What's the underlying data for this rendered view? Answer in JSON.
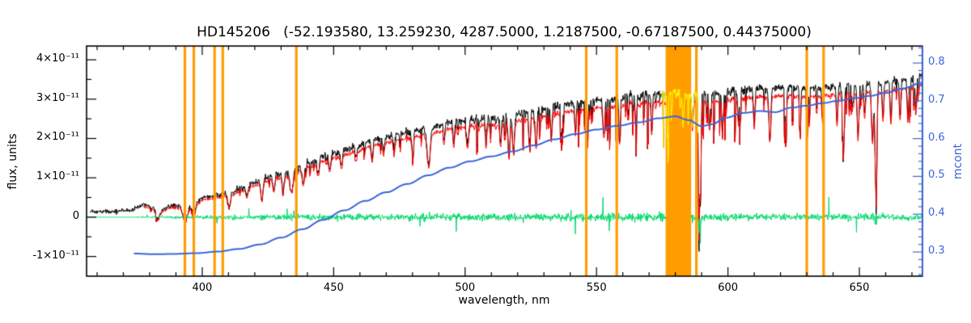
{
  "chart_data": {
    "type": "line",
    "title": "HD145206   (-52.193580, 13.259230, 4287.5000, 1.2187500, -0.67187500, 0.44375000)",
    "xlabel": "wavelength, nm",
    "x_range": [
      356,
      674
    ],
    "x_ticks": [
      400,
      450,
      500,
      550,
      600,
      650
    ],
    "x_tick_labels": [
      "400",
      "450",
      "500",
      "550",
      "600",
      "650"
    ],
    "x_minor_step": 10,
    "left_axis": {
      "label": "flux, units",
      "units_scale": "1e-11",
      "range_1e11": [
        -1.5,
        4.35
      ],
      "ticks_1e11": [
        -1,
        0,
        1,
        2,
        3,
        4
      ],
      "tick_labels": [
        "-1×10⁻¹¹",
        "0",
        "1×10⁻¹¹",
        "2×10⁻¹¹",
        "3×10⁻¹¹",
        "4×10⁻¹¹"
      ],
      "color": "#000000"
    },
    "right_axis": {
      "label": "mcont",
      "range": [
        0.236,
        0.845
      ],
      "ticks": [
        0.3,
        0.4,
        0.5,
        0.6,
        0.7,
        0.8
      ],
      "tick_labels": [
        "0.3",
        "0.4",
        "0.5",
        "0.6",
        "0.7",
        "0.8"
      ],
      "color": "#3a66d9"
    },
    "series": [
      {
        "name": "observed-spectrum",
        "color": "#000000",
        "axis": "left",
        "start_nm": 357.4,
        "envelope_1e11": [
          [
            357,
            0.14
          ],
          [
            365,
            0.15
          ],
          [
            373,
            0.18
          ],
          [
            377,
            0.3
          ],
          [
            381,
            0.26
          ],
          [
            384,
            0.14
          ],
          [
            388,
            0.3
          ],
          [
            391,
            0.28
          ],
          [
            394,
            0.22
          ],
          [
            397,
            0.3
          ],
          [
            400,
            0.5
          ],
          [
            404,
            0.55
          ],
          [
            408,
            0.6
          ],
          [
            412,
            0.66
          ],
          [
            417,
            0.8
          ],
          [
            422,
            0.95
          ],
          [
            427,
            1.05
          ],
          [
            432,
            1.12
          ],
          [
            437,
            1.28
          ],
          [
            442,
            1.42
          ],
          [
            447,
            1.55
          ],
          [
            452,
            1.66
          ],
          [
            458,
            1.8
          ],
          [
            464,
            1.95
          ],
          [
            471,
            2.06
          ],
          [
            478,
            2.16
          ],
          [
            483,
            2.22
          ],
          [
            488,
            2.32
          ],
          [
            494,
            2.42
          ],
          [
            500,
            2.48
          ],
          [
            508,
            2.52
          ],
          [
            513,
            2.48
          ],
          [
            518,
            2.58
          ],
          [
            524,
            2.68
          ],
          [
            532,
            2.78
          ],
          [
            540,
            2.88
          ],
          [
            548,
            2.96
          ],
          [
            556,
            3.02
          ],
          [
            564,
            3.08
          ],
          [
            572,
            3.12
          ],
          [
            580,
            3.16
          ],
          [
            588,
            3.12
          ],
          [
            596,
            3.16
          ],
          [
            604,
            3.22
          ],
          [
            612,
            3.26
          ],
          [
            620,
            3.3
          ],
          [
            628,
            3.26
          ],
          [
            636,
            3.3
          ],
          [
            644,
            3.36
          ],
          [
            652,
            3.4
          ],
          [
            660,
            3.44
          ],
          [
            668,
            3.5
          ],
          [
            674,
            3.58
          ]
        ],
        "noise_amp_1e11": [
          [
            357,
            0.06
          ],
          [
            375,
            0.07
          ],
          [
            400,
            0.09
          ],
          [
            430,
            0.11
          ],
          [
            470,
            0.12
          ],
          [
            520,
            0.13
          ],
          [
            560,
            0.13
          ],
          [
            600,
            0.13
          ],
          [
            640,
            0.12
          ],
          [
            674,
            0.12
          ]
        ],
        "spike_prob": [
          [
            357,
            0.02
          ],
          [
            430,
            0.03
          ],
          [
            470,
            0.07
          ],
          [
            520,
            0.1
          ],
          [
            545,
            0.13
          ],
          [
            600,
            0.13
          ],
          [
            640,
            0.11
          ],
          [
            674,
            0.1
          ]
        ],
        "spike_depth_1e11": [
          [
            357,
            0.15
          ],
          [
            430,
            0.3
          ],
          [
            470,
            0.7
          ],
          [
            520,
            1.0
          ],
          [
            545,
            1.4
          ],
          [
            600,
            1.4
          ],
          [
            640,
            1.2
          ],
          [
            674,
            1.1
          ]
        ]
      },
      {
        "name": "fitted-spectrum",
        "color": "#ff0000",
        "axis": "left",
        "start_nm": 377.3,
        "scale": 0.945,
        "offset_1e11": -0.035,
        "noise_factor": 0.65,
        "line_factor": 0.88,
        "spike_factor": 0.85
      },
      {
        "name": "residuals",
        "color": "#00d96a",
        "axis": "left",
        "zero_until_nm": 375.2,
        "amp_1e11": [
          [
            375,
            0.02
          ],
          [
            400,
            0.05
          ],
          [
            430,
            0.08
          ],
          [
            460,
            0.1
          ],
          [
            500,
            0.11
          ],
          [
            540,
            0.12
          ],
          [
            580,
            0.12
          ],
          [
            620,
            0.11
          ],
          [
            674,
            0.1
          ]
        ]
      },
      {
        "name": "continuum-mcont",
        "color": "#3a66d9",
        "axis": "right",
        "points": [
          [
            374,
            0.296
          ],
          [
            382,
            0.294
          ],
          [
            390,
            0.295
          ],
          [
            398,
            0.297
          ],
          [
            406,
            0.301
          ],
          [
            414,
            0.308
          ],
          [
            422,
            0.32
          ],
          [
            430,
            0.338
          ],
          [
            438,
            0.36
          ],
          [
            446,
            0.385
          ],
          [
            454,
            0.41
          ],
          [
            462,
            0.435
          ],
          [
            470,
            0.458
          ],
          [
            478,
            0.48
          ],
          [
            486,
            0.503
          ],
          [
            494,
            0.523
          ],
          [
            502,
            0.54
          ],
          [
            510,
            0.553
          ],
          [
            518,
            0.566
          ],
          [
            526,
            0.582
          ],
          [
            534,
            0.598
          ],
          [
            542,
            0.612
          ],
          [
            550,
            0.624
          ],
          [
            558,
            0.634
          ],
          [
            566,
            0.643
          ],
          [
            574,
            0.654
          ],
          [
            580,
            0.659
          ],
          [
            585,
            0.649
          ],
          [
            590,
            0.633
          ],
          [
            594,
            0.638
          ],
          [
            599,
            0.655
          ],
          [
            606,
            0.668
          ],
          [
            612,
            0.673
          ],
          [
            618,
            0.67
          ],
          [
            624,
            0.682
          ],
          [
            630,
            0.687
          ],
          [
            636,
            0.694
          ],
          [
            642,
            0.7
          ],
          [
            648,
            0.707
          ],
          [
            654,
            0.713
          ],
          [
            660,
            0.721
          ],
          [
            666,
            0.732
          ],
          [
            674,
            0.748
          ]
        ]
      },
      {
        "name": "highlighted-segment",
        "color": "#ffff00",
        "axis": "left",
        "range_nm": [
          574.5,
          588.6
        ]
      }
    ],
    "absorption_lines": [
      [
        383.0,
        0.25,
        0.8
      ],
      [
        393.4,
        0.4,
        0.9
      ],
      [
        396.8,
        0.32,
        0.8
      ],
      [
        410.2,
        0.4,
        0.7
      ],
      [
        417.0,
        0.3,
        0.5
      ],
      [
        422.7,
        0.55,
        0.6
      ],
      [
        427.2,
        0.4,
        0.5
      ],
      [
        430.8,
        0.5,
        0.5
      ],
      [
        434.0,
        0.55,
        0.8
      ],
      [
        438.4,
        0.5,
        0.6
      ],
      [
        444.0,
        0.35,
        0.5
      ],
      [
        448.5,
        0.35,
        0.45
      ],
      [
        453.0,
        0.4,
        0.5
      ],
      [
        458.5,
        0.35,
        0.45
      ],
      [
        464.6,
        0.45,
        0.5
      ],
      [
        469.0,
        0.4,
        0.45
      ],
      [
        473.0,
        0.4,
        0.45
      ],
      [
        480.0,
        0.45,
        0.45
      ],
      [
        486.1,
        1.0,
        0.8
      ],
      [
        492.0,
        0.45,
        0.4
      ],
      [
        495.7,
        0.55,
        0.4
      ],
      [
        501.0,
        0.6,
        0.5
      ],
      [
        508.0,
        0.55,
        0.4
      ],
      [
        513.5,
        0.6,
        0.4
      ],
      [
        516.7,
        1.0,
        0.5
      ],
      [
        518.4,
        0.95,
        0.5
      ],
      [
        524.5,
        0.65,
        0.4
      ],
      [
        527.0,
        0.9,
        0.5
      ],
      [
        532.8,
        0.75,
        0.4
      ],
      [
        537.0,
        0.65,
        0.4
      ],
      [
        542.0,
        0.7,
        0.4
      ],
      [
        546.5,
        0.7,
        0.4
      ],
      [
        552.8,
        0.95,
        0.5
      ],
      [
        558.8,
        0.9,
        0.45
      ],
      [
        565.0,
        0.75,
        0.4
      ],
      [
        571.0,
        0.75,
        0.4
      ],
      [
        577.0,
        0.7,
        0.4
      ],
      [
        583.0,
        0.75,
        0.4
      ],
      [
        586.5,
        0.8,
        0.4
      ],
      [
        589.0,
        3.6,
        0.35
      ],
      [
        589.6,
        2.6,
        0.3
      ],
      [
        593.0,
        0.9,
        0.4
      ],
      [
        598.0,
        0.85,
        0.4
      ],
      [
        604.0,
        0.8,
        0.4
      ],
      [
        610.0,
        0.85,
        0.4
      ],
      [
        616.0,
        1.3,
        0.5
      ],
      [
        622.0,
        1.0,
        0.45
      ],
      [
        627.5,
        0.8,
        0.4
      ],
      [
        630.2,
        0.95,
        0.45
      ],
      [
        636.0,
        0.8,
        0.4
      ],
      [
        641.5,
        0.9,
        0.4
      ],
      [
        644.0,
        1.2,
        0.45
      ],
      [
        649.5,
        1.3,
        0.5
      ],
      [
        652.0,
        0.8,
        0.4
      ],
      [
        655.0,
        1.5,
        0.5
      ],
      [
        656.3,
        2.8,
        0.5
      ],
      [
        659.0,
        0.85,
        0.4
      ],
      [
        662.0,
        1.0,
        0.4
      ],
      [
        665.5,
        0.9,
        0.4
      ],
      [
        668.5,
        1.0,
        0.4
      ],
      [
        671.5,
        0.9,
        0.4
      ]
    ],
    "markers": {
      "color": "#ff9d00",
      "line_width": 3.2,
      "lines_nm": [
        393.4,
        396.8,
        404.7,
        407.8,
        435.8,
        546.1,
        557.7,
        588.0,
        630.0,
        636.4
      ],
      "band_nm": [
        576.3,
        586.0
      ]
    }
  }
}
